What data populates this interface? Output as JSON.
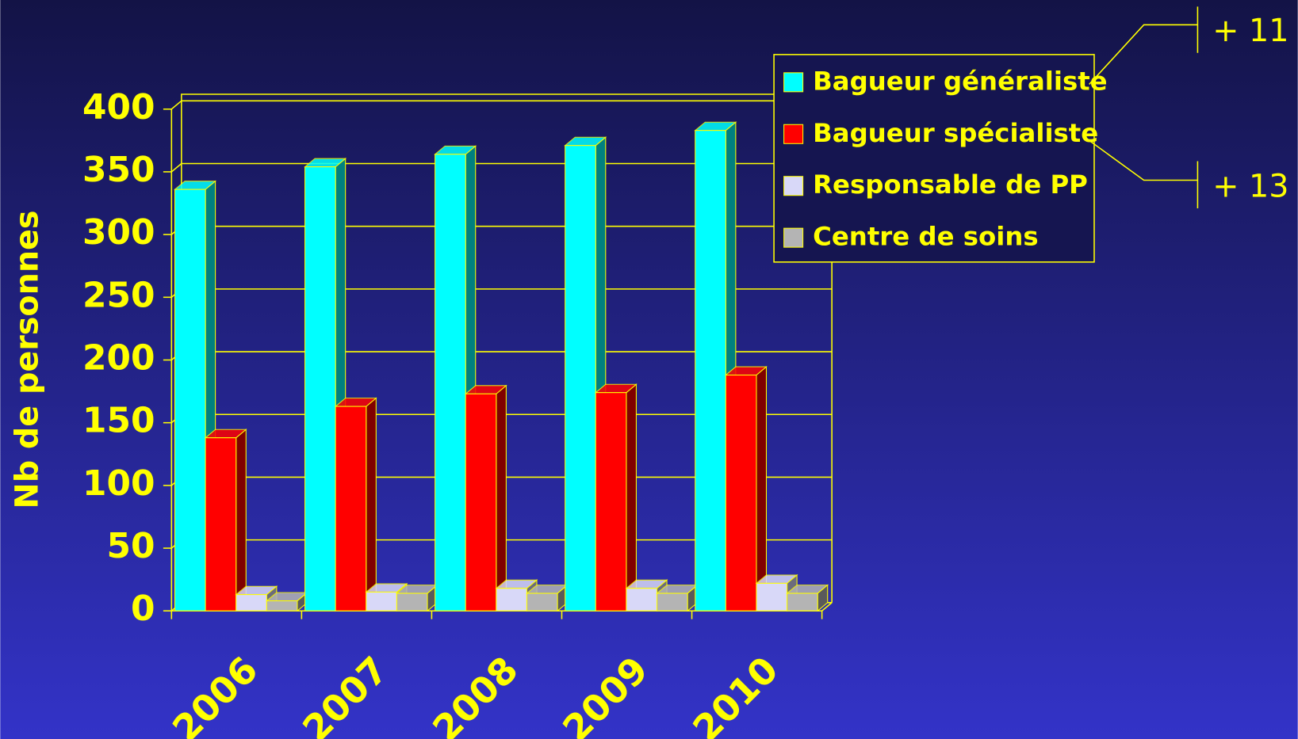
{
  "chart_data": {
    "type": "bar3d",
    "y_label": "Nb de personnes",
    "categories": [
      "2006",
      "2007",
      "2008",
      "2009",
      "2010"
    ],
    "series": [
      {
        "name": "Bagueur généraliste",
        "color": "#00ffff",
        "values": [
          336,
          354,
          364,
          371,
          383
        ]
      },
      {
        "name": "Bagueur spécialiste",
        "color": "#ff0000",
        "values": [
          138,
          163,
          173,
          174,
          188
        ]
      },
      {
        "name": "Responsable de PP",
        "color": "#d8d8f8",
        "values": [
          13,
          15,
          18,
          18,
          22
        ]
      },
      {
        "name": "Centre de soins",
        "color": "#b4b4b4",
        "values": [
          8,
          14,
          14,
          14,
          14
        ]
      }
    ],
    "ylim": [
      0,
      400
    ],
    "yticks": [
      0,
      50,
      100,
      150,
      200,
      250,
      300,
      350,
      400
    ],
    "grid": true,
    "legend": "top-right",
    "annotations": [
      "+ 11",
      "+ 13"
    ]
  }
}
